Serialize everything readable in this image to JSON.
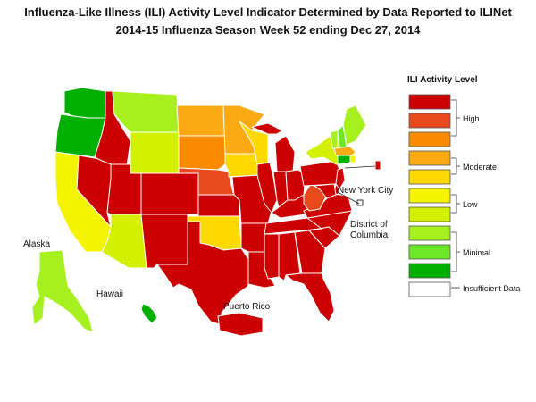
{
  "title": {
    "line1": "Influenza-Like Illness (ILI) Activity Level Indicator Determined by Data Reported to ILINet",
    "line2": "2014-15  Influenza Season Week  52 ending Dec 27, 2014"
  },
  "map_labels": {
    "nyc": "New York City",
    "dc_line1": "District of",
    "dc_line2": "Columbia",
    "alaska": "Alaska",
    "hawaii": "Hawaii",
    "puerto_rico": "Puerto Rico"
  },
  "legend": {
    "title": "ILI Activity Level",
    "levels": [
      {
        "level": 10,
        "color": "#cc0000"
      },
      {
        "level": 9,
        "color": "#e8491d"
      },
      {
        "level": 8,
        "color": "#f98b00"
      },
      {
        "level": 7,
        "color": "#fbaa14"
      },
      {
        "level": 6,
        "color": "#fdd900"
      },
      {
        "level": 5,
        "color": "#f4f400"
      },
      {
        "level": 4,
        "color": "#d2f000"
      },
      {
        "level": 3,
        "color": "#a6f020"
      },
      {
        "level": 2,
        "color": "#6ce828"
      },
      {
        "level": 1,
        "color": "#00b000"
      },
      {
        "level": 0,
        "color": "#ffffff"
      }
    ],
    "groups": {
      "high": "High",
      "moderate": "Moderate",
      "low": "Low",
      "minimal": "Minimal",
      "insufficient": "Insufficient Data"
    }
  },
  "states": {
    "WA": {
      "level": 1
    },
    "OR": {
      "level": 1
    },
    "CA": {
      "level": 5
    },
    "NV": {
      "level": 10
    },
    "ID": {
      "level": 10
    },
    "MT": {
      "level": 3
    },
    "WY": {
      "level": 4
    },
    "UT": {
      "level": 10
    },
    "AZ": {
      "level": 4
    },
    "CO": {
      "level": 10
    },
    "NM": {
      "level": 10
    },
    "ND": {
      "level": 7
    },
    "SD": {
      "level": 8
    },
    "NE": {
      "level": 9
    },
    "KS": {
      "level": 10
    },
    "OK": {
      "level": 6
    },
    "TX": {
      "level": 10
    },
    "MN": {
      "level": 7
    },
    "IA": {
      "level": 6
    },
    "MO": {
      "level": 10
    },
    "AR": {
      "level": 10
    },
    "LA": {
      "level": 10
    },
    "WI": {
      "level": 6
    },
    "IL": {
      "level": 10
    },
    "MI": {
      "level": 10
    },
    "IN": {
      "level": 10
    },
    "OH": {
      "level": 10
    },
    "KY": {
      "level": 10
    },
    "TN": {
      "level": 10
    },
    "MS": {
      "level": 10
    },
    "AL": {
      "level": 10
    },
    "GA": {
      "level": 10
    },
    "FL": {
      "level": 10
    },
    "SC": {
      "level": 10
    },
    "NC": {
      "level": 10
    },
    "VA": {
      "level": 10
    },
    "WV": {
      "level": 9
    },
    "PA": {
      "level": 10
    },
    "NY": {
      "level": 4
    },
    "VT": {
      "level": 3
    },
    "NH": {
      "level": 2
    },
    "ME": {
      "level": 3
    },
    "MA": {
      "level": 7
    },
    "CT": {
      "level": 1
    },
    "RI": {
      "level": 5
    },
    "NJ": {
      "level": 10
    },
    "DE": {
      "level": 10
    },
    "MD": {
      "level": 10
    },
    "AK": {
      "level": 3
    },
    "HI": {
      "level": 1
    },
    "PR": {
      "level": 10
    },
    "NYC": {
      "level": 10
    },
    "DC": {
      "level": 0
    }
  }
}
